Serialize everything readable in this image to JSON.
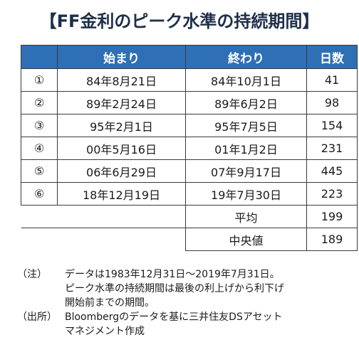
{
  "title": "【FF金利のピーク水準の持続期間】",
  "table": {
    "headers": [
      "",
      "始まり",
      "終わり",
      "日数"
    ],
    "rows": [
      {
        "no": "①",
        "start": "84年8月21日",
        "end": "84年10月1日",
        "days": "41"
      },
      {
        "no": "②",
        "start": "89年2月24日",
        "end": "89年6月2日",
        "days": "98"
      },
      {
        "no": "③",
        "start": "95年2月1日",
        "end": "95年7月5日",
        "days": "154"
      },
      {
        "no": "④",
        "start": "00年5月16日",
        "end": "01年1月2日",
        "days": "231"
      },
      {
        "no": "⑤",
        "start": "06年6月29日",
        "end": "07年9月17日",
        "days": "445"
      },
      {
        "no": "⑥",
        "start": "18年12月19日",
        "end": "19年7月30日",
        "days": "223"
      }
    ],
    "summary": [
      {
        "label": "平均",
        "value": "199"
      },
      {
        "label": "中央値",
        "value": "189"
      }
    ]
  },
  "notes": [
    {
      "label": "（注）",
      "lines": [
        "データは1983年12月31日～2019年7月31日。",
        "ピーク水準の持続期間は最後の利上げから利下げ",
        "開始前までの期間。"
      ]
    },
    {
      "label": "（出所）",
      "lines": [
        "Bloombergのデータを基に三井住友DSアセット",
        "マネジメント作成"
      ]
    }
  ],
  "colors": {
    "header_bg": "#2e6fb6",
    "header_text": "#ffffff",
    "title_text": "#1f2f4a",
    "border": "#3a3a3a"
  }
}
